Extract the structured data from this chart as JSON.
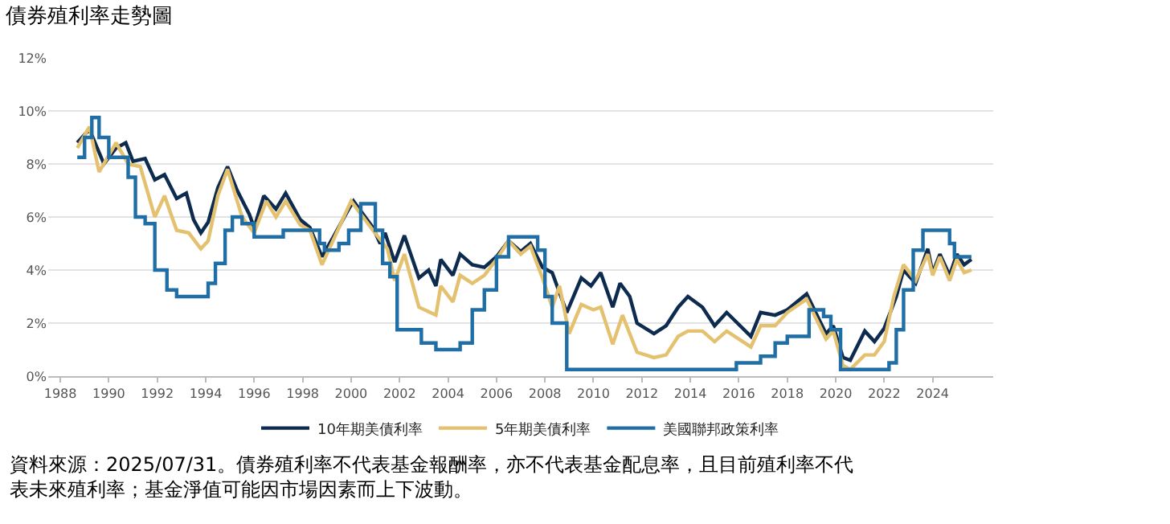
{
  "chart_data": {
    "type": "line",
    "title": "債券殖利率走勢圖",
    "xlim": [
      1987.5,
      2026.5
    ],
    "xticks": [
      1988,
      1990,
      1992,
      1994,
      1996,
      1998,
      2000,
      2002,
      2004,
      2006,
      2008,
      2010,
      2012,
      2014,
      2016,
      2018,
      2020,
      2022,
      2024
    ],
    "ylim": [
      0,
      12
    ],
    "yticks": [
      {
        "value": 0,
        "label": "0%"
      },
      {
        "value": 2,
        "label": "2%"
      },
      {
        "value": 4,
        "label": "4%"
      },
      {
        "value": 6,
        "label": "6%"
      },
      {
        "value": 8,
        "label": "8%"
      },
      {
        "value": 10,
        "label": "10%"
      },
      {
        "value": 12,
        "label": "12%"
      }
    ],
    "grid": "y",
    "legend": "bottom",
    "marker": "none",
    "line_style": "solid",
    "series": [
      {
        "name": "10年期美債利率",
        "color": "#0d2a4f",
        "x": [
          1988.7,
          1989.2,
          1989.8,
          1990.3,
          1990.7,
          1991.0,
          1991.5,
          1991.9,
          1992.3,
          1992.8,
          1993.2,
          1993.5,
          1993.8,
          1994.1,
          1994.5,
          1994.9,
          1995.3,
          1995.8,
          1996.0,
          1996.4,
          1996.9,
          1997.3,
          1997.9,
          1998.3,
          1998.8,
          1999.3,
          1999.9,
          2000.1,
          2000.9,
          2001.2,
          2001.4,
          2001.8,
          2002.2,
          2002.8,
          2003.2,
          2003.5,
          2003.7,
          2004.2,
          2004.5,
          2005.0,
          2005.5,
          2006.0,
          2006.5,
          2007.0,
          2007.4,
          2007.9,
          2008.3,
          2008.9,
          2009.5,
          2009.9,
          2010.3,
          2010.8,
          2011.1,
          2011.5,
          2011.8,
          2012.5,
          2013.0,
          2013.5,
          2013.9,
          2014.5,
          2015.0,
          2015.5,
          2016.5,
          2016.9,
          2017.5,
          2018.0,
          2018.8,
          2019.6,
          2019.9,
          2020.3,
          2020.6,
          2021.2,
          2021.6,
          2022.0,
          2022.5,
          2022.8,
          2023.3,
          2023.8,
          2024.0,
          2024.3,
          2024.7,
          2025.0,
          2025.3,
          2025.6
        ],
        "values": [
          8.8,
          9.3,
          8.0,
          8.6,
          8.8,
          8.1,
          8.2,
          7.4,
          7.6,
          6.7,
          6.9,
          5.9,
          5.4,
          5.8,
          7.1,
          7.9,
          7.0,
          6.1,
          5.6,
          6.8,
          6.3,
          6.9,
          5.9,
          5.6,
          4.5,
          5.3,
          6.3,
          6.6,
          5.6,
          5.0,
          5.4,
          4.3,
          5.3,
          3.7,
          4.0,
          3.4,
          4.4,
          3.8,
          4.6,
          4.2,
          4.1,
          4.5,
          5.1,
          4.7,
          5.0,
          4.1,
          3.9,
          2.4,
          3.7,
          3.4,
          3.9,
          2.6,
          3.5,
          3.0,
          2.0,
          1.6,
          1.9,
          2.6,
          3.0,
          2.6,
          1.9,
          2.4,
          1.5,
          2.4,
          2.3,
          2.5,
          3.1,
          1.6,
          1.9,
          0.7,
          0.6,
          1.7,
          1.3,
          1.8,
          3.0,
          4.0,
          3.5,
          4.8,
          3.9,
          4.6,
          3.8,
          4.6,
          4.2,
          4.4
        ]
      },
      {
        "name": "5年期美債利率",
        "color": "#e3c16f",
        "x": [
          1988.7,
          1989.2,
          1989.6,
          1990.3,
          1990.8,
          1991.3,
          1991.9,
          1992.3,
          1992.8,
          1993.3,
          1993.8,
          1994.1,
          1994.5,
          1994.9,
          1995.5,
          1996.0,
          1996.5,
          1996.9,
          1997.3,
          1997.9,
          1998.3,
          1998.8,
          1999.3,
          2000.0,
          2000.9,
          2001.5,
          2001.8,
          2002.2,
          2002.8,
          2003.5,
          2003.7,
          2004.2,
          2004.5,
          2005.0,
          2005.5,
          2006.0,
          2006.5,
          2007.0,
          2007.4,
          2007.9,
          2008.3,
          2008.6,
          2009.0,
          2009.5,
          2010.0,
          2010.3,
          2010.8,
          2011.2,
          2011.8,
          2012.5,
          2013.0,
          2013.5,
          2013.9,
          2014.5,
          2015.0,
          2015.5,
          2016.5,
          2016.9,
          2017.5,
          2018.0,
          2018.8,
          2019.6,
          2019.9,
          2020.3,
          2020.6,
          2021.2,
          2021.6,
          2022.0,
          2022.4,
          2022.8,
          2023.3,
          2023.8,
          2024.0,
          2024.3,
          2024.7,
          2025.0,
          2025.3,
          2025.6
        ],
        "values": [
          8.6,
          9.4,
          7.7,
          8.8,
          8.0,
          7.9,
          6.0,
          6.8,
          5.5,
          5.4,
          4.8,
          5.1,
          6.8,
          7.8,
          6.0,
          5.4,
          6.6,
          6.0,
          6.6,
          5.7,
          5.5,
          4.2,
          5.2,
          6.6,
          5.5,
          4.8,
          3.6,
          4.6,
          2.6,
          2.3,
          3.4,
          2.8,
          3.8,
          3.5,
          3.8,
          4.4,
          5.1,
          4.6,
          4.9,
          3.7,
          2.6,
          3.4,
          1.6,
          2.7,
          2.5,
          2.6,
          1.2,
          2.3,
          0.9,
          0.7,
          0.8,
          1.5,
          1.7,
          1.7,
          1.3,
          1.7,
          1.1,
          1.9,
          1.9,
          2.4,
          2.9,
          1.4,
          1.7,
          0.4,
          0.25,
          0.8,
          0.8,
          1.3,
          3.0,
          4.2,
          3.6,
          4.6,
          3.8,
          4.5,
          3.6,
          4.4,
          3.9,
          4.0
        ]
      },
      {
        "name": "美國聯邦政策利率",
        "color": "#1f6fa6",
        "type": "step",
        "x": [
          1988.7,
          1989.0,
          1989.3,
          1989.6,
          1990.0,
          1990.8,
          1991.1,
          1991.5,
          1991.9,
          1992.4,
          1992.8,
          1994.1,
          1994.4,
          1994.8,
          1995.1,
          1995.5,
          1996.0,
          1997.2,
          1998.7,
          1998.9,
          1999.5,
          1999.9,
          2000.4,
          2001.0,
          2001.3,
          2001.6,
          2001.9,
          2002.9,
          2003.5,
          2004.5,
          2005.0,
          2005.5,
          2006.0,
          2006.5,
          2007.7,
          2008.0,
          2008.3,
          2008.9,
          2015.9,
          2016.9,
          2017.5,
          2018.0,
          2018.9,
          2019.5,
          2019.8,
          2020.2,
          2022.2,
          2022.5,
          2022.8,
          2023.2,
          2023.6,
          2024.7,
          2024.9,
          2025.6
        ],
        "values": [
          8.25,
          9.0,
          9.75,
          9.0,
          8.25,
          7.5,
          6.0,
          5.75,
          4.0,
          3.25,
          3.0,
          3.5,
          4.25,
          5.5,
          6.0,
          5.75,
          5.25,
          5.5,
          5.0,
          4.75,
          5.0,
          5.5,
          6.5,
          5.5,
          4.25,
          3.75,
          1.75,
          1.25,
          1.0,
          1.25,
          2.5,
          3.25,
          4.5,
          5.25,
          4.75,
          3.0,
          2.0,
          0.25,
          0.5,
          0.75,
          1.25,
          1.5,
          2.5,
          2.25,
          1.75,
          0.25,
          0.5,
          1.75,
          3.25,
          4.75,
          5.5,
          5.0,
          4.5,
          4.5
        ]
      }
    ],
    "annotations": [
      "資料來源：2025/07/31。債券殖利率不代表基金報酬率，亦不代表基金配息率，且目前殖利率不代表未來殖利率；基金淨值可能因市場因素而上下波動。"
    ]
  }
}
